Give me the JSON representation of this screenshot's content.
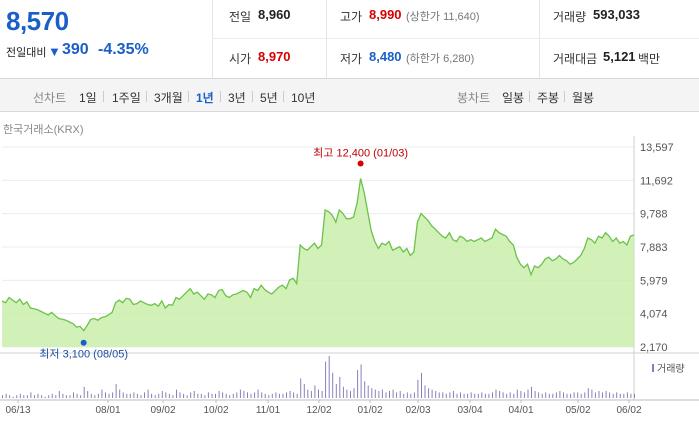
{
  "header": {
    "price": "8,570",
    "change_label": "전일대비",
    "change_arrow": "▼",
    "change_amount": "390",
    "change_percent": "-4.35%",
    "stats": {
      "prev_close_label": "전일",
      "prev_close": "8,960",
      "open_label": "시가",
      "open": "8,970",
      "high_label": "고가",
      "high": "8,990",
      "upper_limit": "(상한가 11,640)",
      "low_label": "저가",
      "low": "8,480",
      "lower_limit": "(하한가 6,280)",
      "volume_label": "거래량",
      "volume": "593,033",
      "amount_label": "거래대금",
      "amount": "5,121",
      "amount_unit": "백만"
    }
  },
  "toolbar": {
    "line_chart_label": "선차트",
    "periods": [
      "1일",
      "1주일",
      "3개월",
      "1년",
      "3년",
      "5년",
      "10년"
    ],
    "active_period": "1년",
    "candle_label": "봉차트",
    "candle_periods": [
      "일봉",
      "주봉",
      "월봉"
    ]
  },
  "source_label": "한국거래소(KRX)",
  "colors": {
    "accent_blue": "#1a5fc7",
    "up_red": "#d60000",
    "line_green": "#6cc24a",
    "fill_green": "#c9efad",
    "volume_bar": "#8a7fb5"
  },
  "chart_data": {
    "type": "area",
    "x_ticks": [
      "06/13",
      "08/01",
      "09/02",
      "10/02",
      "11/01",
      "12/02",
      "01/02",
      "02/03",
      "03/04",
      "04/01",
      "05/02",
      "06/02"
    ],
    "y_ticks": [
      13597,
      11692,
      9788,
      7883,
      5979,
      4074,
      2170
    ],
    "ylim": [
      2170,
      13597
    ],
    "series": [
      {
        "values": [
          4800,
          4700,
          5000,
          4850,
          4700,
          4900,
          4600,
          4750,
          4400,
          4350,
          4300,
          4200,
          4100,
          4000,
          4150,
          3950,
          3800,
          3750,
          3700,
          3600,
          3500,
          3300,
          3350,
          3100,
          3400,
          3750,
          3800,
          3700,
          3850,
          3900,
          4000,
          4150,
          4700,
          4850,
          4700,
          4950,
          4900,
          4600,
          4650,
          4800,
          4700,
          4600,
          4550,
          4650,
          4500,
          4800,
          4400,
          4600,
          4550,
          5000,
          4900,
          5100,
          5300,
          5500,
          5200,
          5300,
          5100,
          4900,
          5200,
          5150,
          5000,
          5400,
          5450,
          5100,
          5000,
          5150,
          5200,
          5300,
          5400,
          5300,
          5000,
          5500,
          5400,
          5700,
          5450,
          5300,
          5200,
          5400,
          5600,
          5700,
          5500,
          6000,
          6100,
          5800,
          8000,
          7800,
          7700,
          7900,
          8100,
          7800,
          8000,
          10000,
          9900,
          9700,
          9300,
          10000,
          9800,
          9500,
          9500,
          9600,
          10400,
          11800,
          11000,
          9900,
          8800,
          8200,
          7800,
          8100,
          8000,
          8200,
          7700,
          7800,
          7900,
          7600,
          7800,
          7400,
          7600,
          9300,
          9800,
          9600,
          9400,
          9100,
          8900,
          8700,
          8500,
          8400,
          8700,
          8300,
          8200,
          8500,
          8400,
          8200,
          8300,
          8200,
          8300,
          8400,
          8200,
          8300,
          8400,
          8900,
          8700,
          8600,
          8500,
          8200,
          8000,
          7300,
          6900,
          6700,
          6900,
          6300,
          6800,
          6700,
          6900,
          7200,
          7300,
          7100,
          7200,
          7400,
          7200,
          7100,
          6900,
          7000,
          7200,
          7400,
          7800,
          8400,
          8300,
          8100,
          8500,
          8400,
          8700,
          8500,
          8200,
          8400,
          8100,
          8200,
          8000,
          8500,
          8570
        ],
        "high": {
          "label": "최고",
          "value": "12,400",
          "date": "(01/03)"
        },
        "low": {
          "label": "최저",
          "value": "3,100",
          "date": "(08/05)"
        }
      }
    ],
    "volume": {
      "label": "거래량",
      "values": [
        2,
        3,
        2,
        1,
        2,
        3,
        2,
        2,
        4,
        2,
        3,
        2,
        1,
        2,
        3,
        2,
        5,
        3,
        2,
        2,
        4,
        3,
        2,
        8,
        5,
        3,
        2,
        3,
        6,
        4,
        3,
        4,
        10,
        6,
        4,
        3,
        3,
        4,
        3,
        2,
        4,
        6,
        3,
        2,
        3,
        5,
        4,
        3,
        2,
        6,
        4,
        3,
        2,
        4,
        5,
        3,
        3,
        2,
        4,
        3,
        3,
        5,
        4,
        3,
        2,
        3,
        4,
        6,
        5,
        4,
        3,
        4,
        6,
        4,
        3,
        2,
        3,
        4,
        3,
        3,
        4,
        5,
        4,
        3,
        14,
        10,
        6,
        5,
        9,
        6,
        5,
        26,
        30,
        18,
        10,
        15,
        8,
        6,
        5,
        7,
        20,
        24,
        12,
        9,
        7,
        6,
        5,
        6,
        4,
        5,
        6,
        4,
        5,
        3,
        4,
        3,
        4,
        13,
        18,
        9,
        7,
        6,
        5,
        4,
        4,
        3,
        4,
        5,
        3,
        4,
        3,
        3,
        4,
        3,
        3,
        4,
        3,
        3,
        4,
        6,
        5,
        4,
        3,
        4,
        3,
        6,
        5,
        4,
        6,
        8,
        5,
        4,
        3,
        4,
        3,
        3,
        4,
        5,
        4,
        3,
        3,
        4,
        4,
        3,
        4,
        7,
        6,
        4,
        5,
        4,
        5,
        4,
        3,
        4,
        3,
        3,
        4,
        3,
        3
      ]
    }
  }
}
